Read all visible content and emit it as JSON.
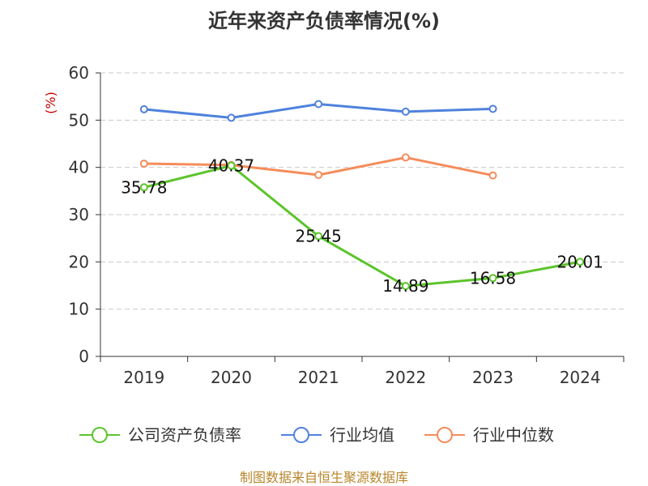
{
  "chart_data": {
    "type": "line",
    "title": "近年来资产负债率情况(%)",
    "ylabel": "(%)",
    "categories": [
      "2019",
      "2020",
      "2021",
      "2022",
      "2023",
      "2024"
    ],
    "ylim": [
      0,
      60
    ],
    "yticks": [
      0,
      10,
      20,
      30,
      40,
      50,
      60
    ],
    "grid": true,
    "legend_position": "bottom",
    "series": [
      {
        "name": "公司资产负债率",
        "color": "#5cc42b",
        "values": [
          35.78,
          40.37,
          25.45,
          14.89,
          16.58,
          20.01
        ],
        "labels": [
          "35.78",
          "40.37",
          "25.45",
          "14.89",
          "16.58",
          "20.01"
        ]
      },
      {
        "name": "行业均值",
        "color": "#4f82dd",
        "values": [
          52.3,
          50.5,
          53.4,
          51.8,
          52.4,
          null
        ]
      },
      {
        "name": "行业中位数",
        "color": "#f58c5a",
        "values": [
          40.8,
          40.5,
          38.4,
          42.1,
          38.3,
          null
        ]
      }
    ]
  },
  "footer": "制图数据来自恒生聚源数据库"
}
